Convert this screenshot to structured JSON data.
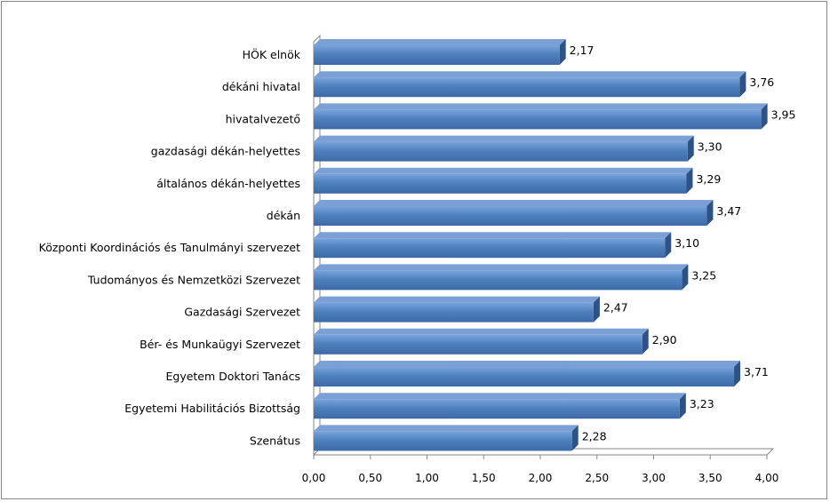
{
  "chart_data": {
    "type": "bar",
    "orientation": "horizontal",
    "style": "3d",
    "categories": [
      "HÖK elnök",
      "dékáni hivatal",
      "hivatalvezető",
      "gazdasági dékán-helyettes",
      "általános dékán-helyettes",
      "dékán",
      "Központi Koordinációs és Tanulmányi szervezet",
      "Tudományos és Nemzetközi Szervezet",
      "Gazdasági Szervezet",
      "Bér- és Munkaügyi Szervezet",
      "Egyetem Doktori Tanács",
      "Egyetemi Habilitációs Bizottság",
      "Szenátus"
    ],
    "values": [
      2.17,
      3.76,
      3.95,
      3.3,
      3.29,
      3.47,
      3.1,
      3.25,
      2.47,
      2.9,
      3.71,
      3.23,
      2.28
    ],
    "value_labels": [
      "2,17",
      "3,76",
      "3,95",
      "3,30",
      "3,29",
      "3,47",
      "3,10",
      "3,25",
      "2,47",
      "2,90",
      "3,71",
      "3,23",
      "2,28"
    ],
    "xlim": [
      0,
      4
    ],
    "x_ticks": [
      0,
      0.5,
      1,
      1.5,
      2,
      2.5,
      3,
      3.5,
      4
    ],
    "x_tick_labels": [
      "0,00",
      "0,50",
      "1,00",
      "1,50",
      "2,00",
      "2,50",
      "3,00",
      "3,50",
      "4,00"
    ],
    "grid": false,
    "legend": "none",
    "title": "",
    "xlabel": "",
    "ylabel": "",
    "colors": {
      "bar_front": "#4f81bd",
      "bar_top": "#7aa0d6",
      "bar_side": "#2d5286",
      "wall": "#d9d9d9",
      "axis": "#868686"
    }
  }
}
